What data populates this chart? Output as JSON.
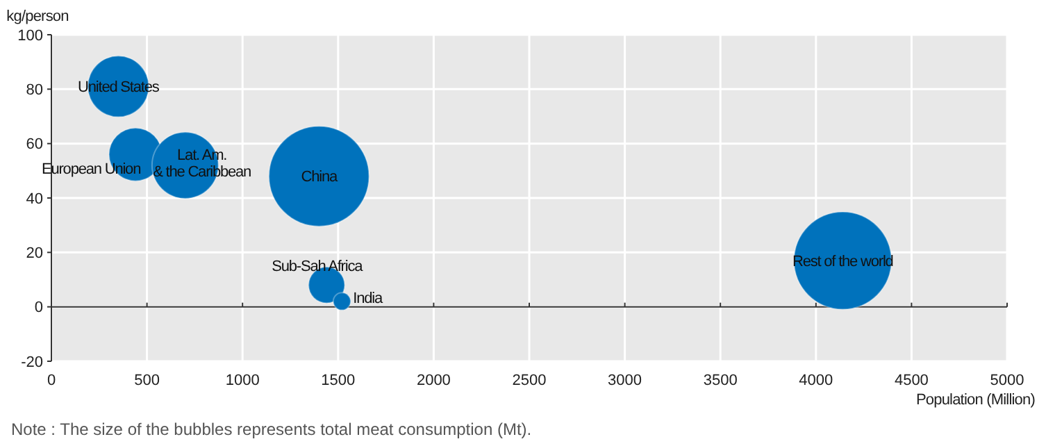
{
  "chart_data": {
    "type": "bubble",
    "xlabel": "Population (Million)",
    "ylabel": "kg/person",
    "xlim": [
      0,
      5000
    ],
    "xticks": [
      0,
      500,
      1000,
      1500,
      2000,
      2500,
      3000,
      3500,
      4000,
      4500,
      5000
    ],
    "ylim": [
      -20,
      100
    ],
    "yticks": [
      -20,
      0,
      20,
      40,
      60,
      80,
      100
    ],
    "grid": true,
    "series": [
      {
        "name": "United States",
        "color": "#0072bc",
        "x": [
          350
        ],
        "values": [
          81
        ],
        "sizes": [
          0.37
        ]
      },
      {
        "name": "European Union",
        "color": "#0072bc",
        "x": [
          440
        ],
        "values": [
          56
        ],
        "sizes": [
          0.28
        ]
      },
      {
        "name": "Lat. Am.\n& the Caribbean",
        "color": "#0072bc",
        "x": [
          700
        ],
        "values": [
          52
        ],
        "sizes": [
          0.44
        ]
      },
      {
        "name": "China",
        "color": "#0072bc",
        "x": [
          1400
        ],
        "values": [
          48
        ],
        "sizes": [
          1
        ]
      },
      {
        "name": "Sub-Sah Africa",
        "color": "#0072bc",
        "x": [
          1440
        ],
        "values": [
          8
        ],
        "sizes": [
          0.13
        ]
      },
      {
        "name": "India",
        "color": "#0072bc",
        "x": [
          1520
        ],
        "values": [
          2
        ],
        "sizes": [
          0.03
        ]
      },
      {
        "name": "Rest of the world",
        "color": "#0072bc",
        "x": [
          4140
        ],
        "values": [
          17
        ],
        "sizes": [
          0.95
        ]
      }
    ],
    "annotations": [
      "Note : The size of the bubbles represents total meat consumption (Mt)."
    ]
  }
}
